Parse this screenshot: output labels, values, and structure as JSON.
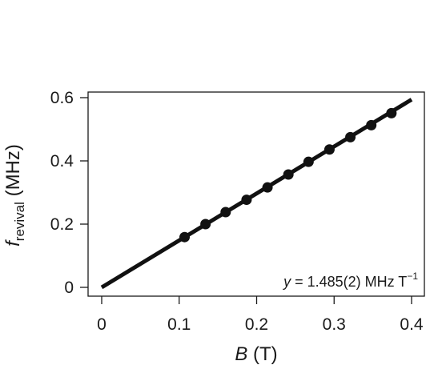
{
  "chart_data": {
    "type": "scatter",
    "xlabel": {
      "var": "B",
      "unit": " (T)"
    },
    "ylabel": {
      "var": "f",
      "sub": "revival",
      "unit": " (MHz)"
    },
    "xlim": [
      0,
      0.4
    ],
    "ylim": [
      0,
      0.6
    ],
    "xticks": [
      {
        "value": 0,
        "label": "0"
      },
      {
        "value": 0.1,
        "label": "0.1"
      },
      {
        "value": 0.2,
        "label": "0.2"
      },
      {
        "value": 0.3,
        "label": "0.3"
      },
      {
        "value": 0.4,
        "label": "0.4"
      }
    ],
    "yticks": [
      {
        "value": 0,
        "label": "0"
      },
      {
        "value": 0.2,
        "label": "0.2"
      },
      {
        "value": 0.4,
        "label": "0.4"
      },
      {
        "value": 0.6,
        "label": "0.6"
      }
    ],
    "points": [
      {
        "x": 0.107,
        "y": 0.159
      },
      {
        "x": 0.134,
        "y": 0.2
      },
      {
        "x": 0.16,
        "y": 0.238
      },
      {
        "x": 0.187,
        "y": 0.277
      },
      {
        "x": 0.214,
        "y": 0.316
      },
      {
        "x": 0.241,
        "y": 0.357
      },
      {
        "x": 0.267,
        "y": 0.397
      },
      {
        "x": 0.294,
        "y": 0.436
      },
      {
        "x": 0.321,
        "y": 0.475
      },
      {
        "x": 0.348,
        "y": 0.513
      },
      {
        "x": 0.374,
        "y": 0.551
      }
    ],
    "fit_line": {
      "slope": 1.485,
      "intercept": 0,
      "x_range": [
        0,
        0.4
      ]
    },
    "annotation": {
      "var": "y",
      "text": " = 1.485(2) MHz T",
      "sup": "−1"
    },
    "grid": false,
    "color": "#111111"
  }
}
